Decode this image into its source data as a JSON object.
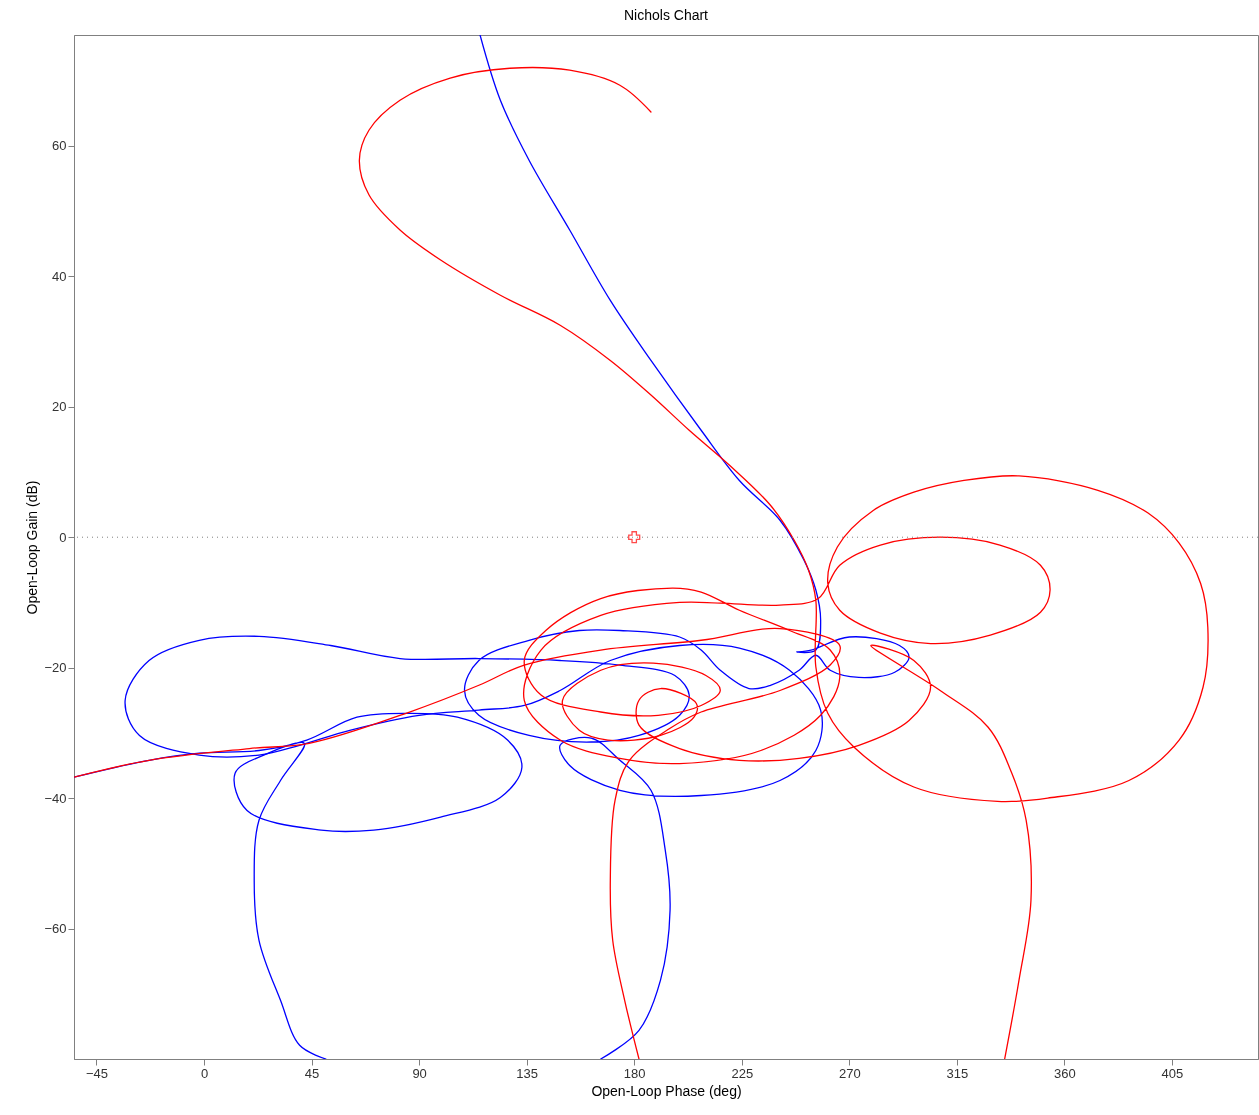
{
  "chart_data": {
    "type": "line",
    "title": "Nichols Chart",
    "xlabel": "Open-Loop Phase (deg)",
    "ylabel": "Open-Loop Gain (dB)",
    "xlim": [
      -54.4,
      441
    ],
    "ylim": [
      -80,
      77
    ],
    "xticks": [
      -45,
      0,
      45,
      90,
      135,
      180,
      225,
      270,
      315,
      360,
      405
    ],
    "yticks": [
      -60,
      -40,
      -20,
      0,
      20,
      40,
      60
    ],
    "grid": false,
    "line_style": "solid",
    "ref_lines": [
      {
        "axis": "y",
        "value": 0,
        "color": "#808080",
        "line_style": "dotted"
      }
    ],
    "series": [
      {
        "color": "#ff0000",
        "x": [
          187,
          174,
          153,
          128,
          103,
          82,
          69,
          65,
          69,
          82,
          99,
          124,
          149,
          170,
          187,
          203,
          220,
          237,
          247,
          253,
          256,
          256,
          261,
          272,
          297,
          332,
          353,
          387,
          408,
          418,
          420,
          417,
          408,
          395,
          374,
          341,
          318,
          297,
          280,
          265,
          261,
          266,
          283,
          304,
          329,
          350,
          354,
          350,
          333,
          308,
          283,
          266,
          257,
          241,
          216,
          199,
          166,
          141,
          134,
          149,
          174,
          199,
          233,
          258,
          266,
          262,
          245,
          224,
          208,
          196,
          166,
          143,
          134,
          141,
          166,
          190,
          208,
          216,
          210,
          188,
          166,
          150,
          157,
          169,
          191,
          205,
          206,
          191,
          182,
          182,
          199,
          224,
          249,
          274,
          295,
          304,
          297,
          279,
          308,
          328,
          338,
          344,
          346,
          341,
          335
        ],
        "values": [
          65.2,
          69.3,
          71.6,
          71.9,
          70.4,
          67.0,
          62.4,
          57.8,
          52.5,
          47.1,
          42.5,
          37.1,
          32.5,
          27.1,
          21.8,
          16.4,
          11.0,
          4.9,
          -0.5,
          -5.1,
          -9.7,
          -19.9,
          -27.0,
          -32.2,
          -38.3,
          -40.5,
          -40.0,
          -37.3,
          -31.1,
          -23.0,
          -13.8,
          -7.1,
          -0.9,
          3.7,
          7.2,
          9.4,
          8.7,
          6.9,
          4.1,
          -1.5,
          -7.1,
          -11.2,
          -14.7,
          -16.3,
          -15.0,
          -11.5,
          -8.1,
          -4.3,
          -1.2,
          0,
          -1.2,
          -4.3,
          -9.4,
          -10.4,
          -10.1,
          -10.0,
          -12.0,
          -17.3,
          -25.0,
          -31.1,
          -33.9,
          -34.7,
          -32.7,
          -27.3,
          -21.5,
          -17.3,
          -14.3,
          -11.2,
          -8.4,
          -7.8,
          -9.4,
          -14.3,
          -18.9,
          -24.2,
          -26.8,
          -27.3,
          -25.8,
          -23.5,
          -21.2,
          -19.3,
          -20.4,
          -25.0,
          -29.6,
          -31.1,
          -30.4,
          -27.6,
          -25.5,
          -23.2,
          -25.0,
          -28.8,
          -32.4,
          -34.2,
          -33.9,
          -31.9,
          -28.1,
          -23.0,
          -18.9,
          -16.6,
          -23.5,
          -29.1,
          -36.2,
          -43.4,
          -55.7,
          -67.9,
          -80
        ]
      },
      {
        "color": "#ff0000",
        "x": [
          182,
          176,
          171,
          170,
          172,
          178,
          195,
          208,
          241,
          262,
          266,
          241,
          208,
          166,
          134,
          115,
          86,
          44,
          19,
          -23,
          -54.4
        ],
        "values": [
          -80,
          -71.0,
          -61.8,
          -52.6,
          -40.3,
          -34.2,
          -29.3,
          -26.8,
          -23.5,
          -19.6,
          -16.6,
          -14.0,
          -15.8,
          -17.3,
          -19.6,
          -22.7,
          -26.8,
          -31.6,
          -32.4,
          -34.2,
          -36.8
        ]
      },
      {
        "color": "#0000ff",
        "x": [
          115.5,
          124,
          136,
          153,
          170,
          187,
          208,
          224,
          241,
          251,
          256,
          258,
          256,
          248,
          254,
          270,
          291,
          295,
          289,
          274,
          262,
          256,
          249,
          237,
          228,
          216,
          208,
          199,
          174,
          157,
          136,
          115,
          109,
          115,
          136,
          162,
          182,
          199,
          203,
          197,
          174,
          149,
          115,
          82,
          53,
          23,
          -2,
          -23,
          -33,
          -27,
          -2,
          23,
          40,
          61,
          90,
          115,
          134,
          149,
          170,
          199,
          224,
          245,
          258,
          256,
          241,
          208,
          174,
          153,
          149,
          162,
          174,
          187,
          193,
          195,
          191,
          182,
          166
        ],
        "values": [
          77,
          67.0,
          57.8,
          47.1,
          36.3,
          27.1,
          16.4,
          8.7,
          2.6,
          -3.5,
          -8.1,
          -12.7,
          -17.3,
          -17.6,
          -17.3,
          -15.3,
          -16.6,
          -18.4,
          -20.7,
          -21.5,
          -20.4,
          -18.1,
          -20.4,
          -22.7,
          -23.2,
          -20.4,
          -17.3,
          -15.3,
          -14.3,
          -14.3,
          -15.8,
          -18.9,
          -23.5,
          -27.3,
          -30.4,
          -31.4,
          -30.4,
          -27.3,
          -24.2,
          -21.2,
          -19.6,
          -18.9,
          -18.6,
          -18.6,
          -16.6,
          -15.2,
          -15.8,
          -18.9,
          -25.0,
          -30.4,
          -33.4,
          -33.4,
          -31.9,
          -29.6,
          -27.3,
          -26.5,
          -25.8,
          -23.5,
          -18.9,
          -16.6,
          -17.0,
          -20.4,
          -26.5,
          -32.7,
          -37.3,
          -39.6,
          -38.8,
          -35.0,
          -31.9,
          -30.8,
          -34.2,
          -38.8,
          -48.0,
          -57.2,
          -67.9,
          -75.6,
          -80
        ]
      },
      {
        "color": "#0000ff",
        "x": [
          51,
          40,
          32,
          23,
          21,
          23,
          32,
          42,
          25,
          13,
          18,
          49,
          71,
          99,
          124,
          133,
          127,
          106,
          85,
          64,
          43,
          23,
          -2,
          -23,
          -54.4
        ],
        "values": [
          -80,
          -77.9,
          -71.0,
          -61.8,
          -52.6,
          -43.4,
          -37.3,
          -31.6,
          -33.4,
          -36.2,
          -41.9,
          -44.9,
          -44.9,
          -42.9,
          -39.9,
          -35.3,
          -31.1,
          -27.6,
          -27.0,
          -27.6,
          -31.1,
          -32.7,
          -33.1,
          -34.2,
          -36.8
        ]
      },
      {
        "type": "scatter",
        "color": "#ff0000",
        "marker": "cross",
        "x": [
          180
        ],
        "values": [
          0
        ]
      }
    ]
  }
}
